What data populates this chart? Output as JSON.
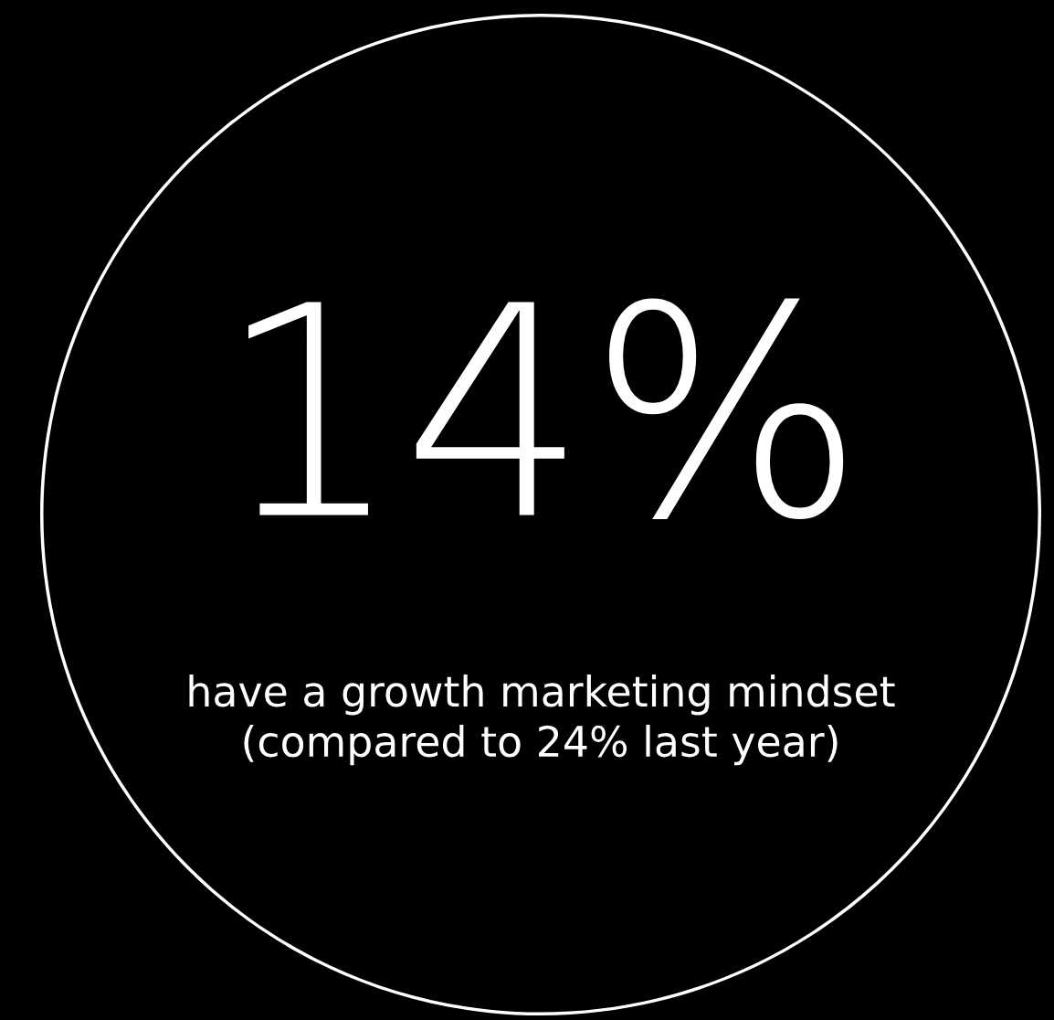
{
  "chart_data": {
    "type": "donut",
    "categories": [
      null,
      null
    ],
    "values": [
      14,
      86
    ],
    "colors": [
      "#ffffff",
      "#ffffff"
    ],
    "value_labels": [
      "14%",
      null
    ],
    "subtitle": "have a growth marketing mindset\n(compared to 24% last year)"
  }
}
